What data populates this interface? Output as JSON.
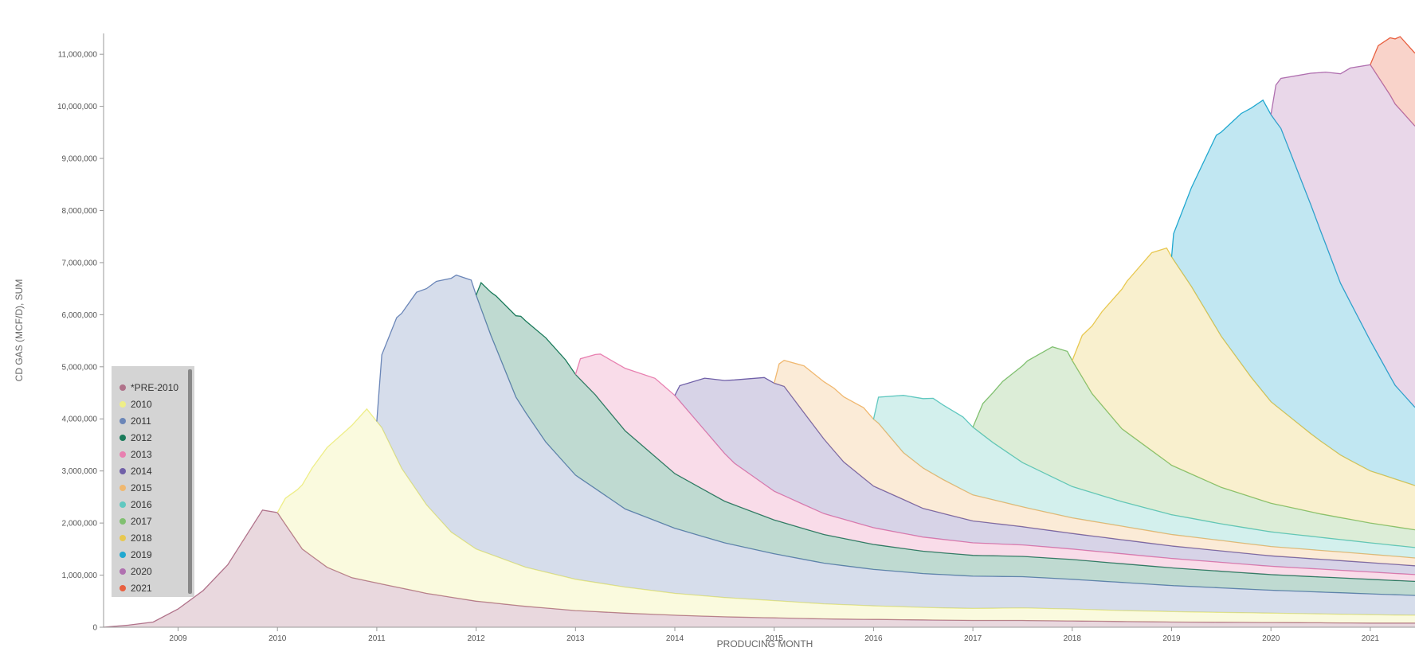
{
  "colors": {
    "axis": "#999999",
    "legend_bg": "#d4d4d4",
    "scrollbar": "#888888"
  },
  "legend": {
    "items": [
      {
        "label": "*PRE-2010",
        "color": "#b0728a"
      },
      {
        "label": "2010",
        "color": "#eeee88"
      },
      {
        "label": "2011",
        "color": "#6b86b8"
      },
      {
        "label": "2012",
        "color": "#1a7a5a"
      },
      {
        "label": "2013",
        "color": "#e880b0"
      },
      {
        "label": "2014",
        "color": "#7060a8"
      },
      {
        "label": "2015",
        "color": "#f0b870"
      },
      {
        "label": "2016",
        "color": "#60c8c0"
      },
      {
        "label": "2017",
        "color": "#80c070"
      },
      {
        "label": "2018",
        "color": "#e8c850"
      },
      {
        "label": "2019",
        "color": "#20a8d0"
      },
      {
        "label": "2020",
        "color": "#b070b0"
      },
      {
        "label": "2021",
        "color": "#e86040"
      }
    ]
  },
  "chart_data": {
    "type": "area",
    "stacked": true,
    "title": "",
    "xlabel": "PRODUCING MONTH",
    "ylabel": "CD GAS (MCF/D), SUM",
    "xlim": [
      2008.25,
      2021.45
    ],
    "ylim": [
      0,
      11400000
    ],
    "x_ticks": [
      2009,
      2010,
      2011,
      2012,
      2013,
      2014,
      2015,
      2016,
      2017,
      2018,
      2019,
      2020,
      2021
    ],
    "y_ticks": [
      0,
      1000000,
      2000000,
      3000000,
      4000000,
      5000000,
      6000000,
      7000000,
      8000000,
      9000000,
      10000000,
      11000000
    ],
    "y_tick_labels": [
      "0",
      "1,000,000",
      "2,000,000",
      "3,000,000",
      "4,000,000",
      "5,000,000",
      "6,000,000",
      "7,000,000",
      "8,000,000",
      "9,000,000",
      "10,000,000",
      "11,000,000"
    ],
    "series": [
      {
        "name": "*PRE-2010",
        "color": "#b0728a",
        "points": [
          [
            2008.25,
            0
          ],
          [
            2008.5,
            40000
          ],
          [
            2008.75,
            100000
          ],
          [
            2009,
            350000
          ],
          [
            2009.25,
            700000
          ],
          [
            2009.5,
            1200000
          ],
          [
            2009.7,
            1800000
          ],
          [
            2009.85,
            2250000
          ],
          [
            2010,
            2200000
          ],
          [
            2010.25,
            1500000
          ],
          [
            2010.5,
            1150000
          ],
          [
            2010.75,
            950000
          ],
          [
            2011,
            850000
          ],
          [
            2011.5,
            650000
          ],
          [
            2012,
            500000
          ],
          [
            2012.5,
            400000
          ],
          [
            2013,
            320000
          ],
          [
            2013.5,
            270000
          ],
          [
            2014,
            230000
          ],
          [
            2014.5,
            200000
          ],
          [
            2015,
            180000
          ],
          [
            2015.5,
            160000
          ],
          [
            2016,
            150000
          ],
          [
            2016.5,
            140000
          ],
          [
            2017,
            130000
          ],
          [
            2017.5,
            130000
          ],
          [
            2018,
            120000
          ],
          [
            2018.5,
            110000
          ],
          [
            2019,
            100000
          ],
          [
            2019.5,
            95000
          ],
          [
            2020,
            90000
          ],
          [
            2020.5,
            85000
          ],
          [
            2021,
            80000
          ],
          [
            2021.45,
            80000
          ]
        ]
      },
      {
        "name": "2010",
        "color": "#eeee88",
        "points": [
          [
            2010,
            0
          ],
          [
            2010.08,
            500000
          ],
          [
            2010.2,
            1000000
          ],
          [
            2010.35,
            1700000
          ],
          [
            2010.5,
            2300000
          ],
          [
            2010.7,
            2800000
          ],
          [
            2010.9,
            3300000
          ],
          [
            2011.05,
            3000000
          ],
          [
            2011.25,
            2300000
          ],
          [
            2011.5,
            1700000
          ],
          [
            2011.75,
            1250000
          ],
          [
            2012,
            1000000
          ],
          [
            2012.5,
            750000
          ],
          [
            2013,
            600000
          ],
          [
            2013.5,
            500000
          ],
          [
            2014,
            420000
          ],
          [
            2014.5,
            370000
          ],
          [
            2015,
            330000
          ],
          [
            2015.5,
            290000
          ],
          [
            2016,
            260000
          ],
          [
            2016.5,
            240000
          ],
          [
            2017,
            230000
          ],
          [
            2017.5,
            240000
          ],
          [
            2018,
            230000
          ],
          [
            2018.5,
            210000
          ],
          [
            2019,
            200000
          ],
          [
            2019.5,
            190000
          ],
          [
            2020,
            180000
          ],
          [
            2020.5,
            170000
          ],
          [
            2021,
            160000
          ],
          [
            2021.45,
            150000
          ]
        ]
      },
      {
        "name": "2011",
        "color": "#6b86b8",
        "points": [
          [
            2011,
            0
          ],
          [
            2011.05,
            1400000
          ],
          [
            2011.2,
            2700000
          ],
          [
            2011.4,
            3800000
          ],
          [
            2011.6,
            4500000
          ],
          [
            2011.8,
            5000000
          ],
          [
            2011.95,
            5100000
          ],
          [
            2012.15,
            4200000
          ],
          [
            2012.4,
            3200000
          ],
          [
            2012.7,
            2500000
          ],
          [
            2013,
            2000000
          ],
          [
            2013.5,
            1500000
          ],
          [
            2014,
            1250000
          ],
          [
            2014.5,
            1050000
          ],
          [
            2015,
            900000
          ],
          [
            2015.5,
            780000
          ],
          [
            2016,
            700000
          ],
          [
            2016.5,
            650000
          ],
          [
            2017,
            620000
          ],
          [
            2017.5,
            600000
          ],
          [
            2018,
            570000
          ],
          [
            2018.5,
            540000
          ],
          [
            2019,
            500000
          ],
          [
            2019.5,
            470000
          ],
          [
            2020,
            440000
          ],
          [
            2020.5,
            420000
          ],
          [
            2021,
            400000
          ],
          [
            2021.45,
            380000
          ]
        ]
      },
      {
        "name": "2012",
        "color": "#1a7a5a",
        "points": [
          [
            2012,
            0
          ],
          [
            2012.05,
            500000
          ],
          [
            2012.2,
            1000000
          ],
          [
            2012.45,
            1700000
          ],
          [
            2012.7,
            2000000
          ],
          [
            2012.9,
            2000000
          ],
          [
            2013.2,
            1800000
          ],
          [
            2013.5,
            1500000
          ],
          [
            2014,
            1050000
          ],
          [
            2014.5,
            800000
          ],
          [
            2015,
            650000
          ],
          [
            2015.5,
            550000
          ],
          [
            2016,
            480000
          ],
          [
            2016.5,
            430000
          ],
          [
            2017,
            400000
          ],
          [
            2017.5,
            390000
          ],
          [
            2018,
            380000
          ],
          [
            2018.5,
            360000
          ],
          [
            2019,
            340000
          ],
          [
            2019.5,
            320000
          ],
          [
            2020,
            300000
          ],
          [
            2020.5,
            290000
          ],
          [
            2021,
            280000
          ],
          [
            2021.45,
            270000
          ]
        ]
      },
      {
        "name": "2013",
        "color": "#e880b0",
        "points": [
          [
            2013,
            0
          ],
          [
            2013.05,
            400000
          ],
          [
            2013.25,
            900000
          ],
          [
            2013.5,
            1200000
          ],
          [
            2013.8,
            1500000
          ],
          [
            2014,
            1500000
          ],
          [
            2014.3,
            1150000
          ],
          [
            2014.6,
            800000
          ],
          [
            2015,
            550000
          ],
          [
            2015.5,
            400000
          ],
          [
            2016,
            320000
          ],
          [
            2016.5,
            270000
          ],
          [
            2017,
            240000
          ],
          [
            2017.5,
            220000
          ],
          [
            2018,
            200000
          ],
          [
            2018.5,
            190000
          ],
          [
            2019,
            180000
          ],
          [
            2019.5,
            170000
          ],
          [
            2020,
            160000
          ],
          [
            2020.5,
            150000
          ],
          [
            2021,
            140000
          ],
          [
            2021.45,
            130000
          ]
        ]
      },
      {
        "name": "2014",
        "color": "#7060a8",
        "points": [
          [
            2014,
            0
          ],
          [
            2014.05,
            300000
          ],
          [
            2014.3,
            1000000
          ],
          [
            2014.6,
            1600000
          ],
          [
            2014.9,
            2050000
          ],
          [
            2015.1,
            2100000
          ],
          [
            2015.4,
            1600000
          ],
          [
            2015.7,
            1100000
          ],
          [
            2016,
            800000
          ],
          [
            2016.5,
            550000
          ],
          [
            2017,
            420000
          ],
          [
            2017.5,
            350000
          ],
          [
            2018,
            300000
          ],
          [
            2018.5,
            270000
          ],
          [
            2019,
            240000
          ],
          [
            2019.5,
            220000
          ],
          [
            2020,
            200000
          ],
          [
            2020.5,
            190000
          ],
          [
            2021,
            180000
          ],
          [
            2021.45,
            170000
          ]
        ]
      },
      {
        "name": "2015",
        "color": "#f0b870",
        "points": [
          [
            2015,
            0
          ],
          [
            2015.05,
            400000
          ],
          [
            2015.3,
            900000
          ],
          [
            2015.6,
            1200000
          ],
          [
            2015.9,
            1350000
          ],
          [
            2016.05,
            1250000
          ],
          [
            2016.3,
            900000
          ],
          [
            2016.7,
            650000
          ],
          [
            2017,
            500000
          ],
          [
            2017.5,
            380000
          ],
          [
            2018,
            300000
          ],
          [
            2018.5,
            260000
          ],
          [
            2019,
            220000
          ],
          [
            2019.5,
            200000
          ],
          [
            2020,
            180000
          ],
          [
            2020.5,
            170000
          ],
          [
            2021,
            160000
          ],
          [
            2021.45,
            150000
          ]
        ]
      },
      {
        "name": "2016",
        "color": "#60c8c0",
        "points": [
          [
            2016,
            0
          ],
          [
            2016.05,
            500000
          ],
          [
            2016.3,
            1100000
          ],
          [
            2016.6,
            1450000
          ],
          [
            2016.9,
            1400000
          ],
          [
            2017.2,
            1100000
          ],
          [
            2017.5,
            850000
          ],
          [
            2018,
            600000
          ],
          [
            2018.5,
            470000
          ],
          [
            2019,
            380000
          ],
          [
            2019.5,
            320000
          ],
          [
            2020,
            280000
          ],
          [
            2020.5,
            250000
          ],
          [
            2021,
            220000
          ],
          [
            2021.45,
            200000
          ]
        ]
      },
      {
        "name": "2017",
        "color": "#80c070",
        "points": [
          [
            2017,
            0
          ],
          [
            2017.1,
            600000
          ],
          [
            2017.3,
            1300000
          ],
          [
            2017.55,
            2000000
          ],
          [
            2017.8,
            2500000
          ],
          [
            2017.95,
            2550000
          ],
          [
            2018.2,
            1900000
          ],
          [
            2018.5,
            1400000
          ],
          [
            2019,
            950000
          ],
          [
            2019.5,
            700000
          ],
          [
            2020,
            550000
          ],
          [
            2020.5,
            450000
          ],
          [
            2021,
            380000
          ],
          [
            2021.45,
            340000
          ]
        ]
      },
      {
        "name": "2018",
        "color": "#e8c850",
        "points": [
          [
            2018,
            0
          ],
          [
            2018.1,
            800000
          ],
          [
            2018.3,
            1800000
          ],
          [
            2018.55,
            2900000
          ],
          [
            2018.8,
            3800000
          ],
          [
            2018.95,
            4100000
          ],
          [
            2019.2,
            3600000
          ],
          [
            2019.5,
            2900000
          ],
          [
            2019.8,
            2300000
          ],
          [
            2020,
            1950000
          ],
          [
            2020.4,
            1500000
          ],
          [
            2020.7,
            1200000
          ],
          [
            2021,
            1000000
          ],
          [
            2021.45,
            850000
          ]
        ]
      },
      {
        "name": "2019",
        "color": "#20a8d0",
        "points": [
          [
            2019,
            0
          ],
          [
            2019.02,
            500000
          ],
          [
            2019.2,
            1900000
          ],
          [
            2019.45,
            3700000
          ],
          [
            2019.7,
            4800000
          ],
          [
            2019.92,
            5600000
          ],
          [
            2020.1,
            5400000
          ],
          [
            2020.4,
            4400000
          ],
          [
            2020.7,
            3300000
          ],
          [
            2021,
            2500000
          ],
          [
            2021.25,
            1800000
          ],
          [
            2021.45,
            1500000
          ]
        ]
      },
      {
        "name": "2020",
        "color": "#b070b0",
        "points": [
          [
            2020,
            0
          ],
          [
            2020.05,
            700000
          ],
          [
            2020.3,
            2000000
          ],
          [
            2020.55,
            3300000
          ],
          [
            2020.8,
            4500000
          ],
          [
            2021,
            5300000
          ],
          [
            2021.2,
            5400000
          ],
          [
            2021.45,
            5400000
          ]
        ]
      },
      {
        "name": "2021",
        "color": "#e86040",
        "points": [
          [
            2021,
            0
          ],
          [
            2021.08,
            600000
          ],
          [
            2021.2,
            1100000
          ],
          [
            2021.3,
            1400000
          ],
          [
            2021.45,
            1400000
          ]
        ]
      }
    ]
  }
}
